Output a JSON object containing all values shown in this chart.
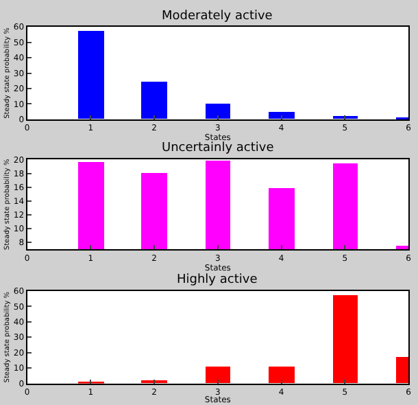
{
  "chart_data": [
    {
      "type": "bar",
      "title": "Moderately active",
      "xlabel": "States",
      "ylabel": "Steady state probability %",
      "x": [
        1,
        2,
        3,
        4,
        5,
        6
      ],
      "values": [
        57.5,
        24.5,
        10.5,
        4.5,
        2,
        0.7
      ],
      "color": "#0000ff",
      "xlim": [
        0,
        6
      ],
      "xticks": [
        0,
        1,
        2,
        3,
        4,
        5,
        6
      ],
      "ylim": [
        0,
        60
      ],
      "yticks": [
        0,
        10,
        20,
        30,
        40,
        50,
        60
      ],
      "grid": false
    },
    {
      "type": "bar",
      "title": "Uncertainly active",
      "xlabel": "States",
      "ylabel": "Steady state probability %",
      "x": [
        1,
        2,
        3,
        4,
        5,
        6
      ],
      "values": [
        19.6,
        18,
        19.9,
        15.9,
        19.5,
        7.5
      ],
      "color": "#ff00ff",
      "xlim": [
        0,
        6
      ],
      "xticks": [
        0,
        1,
        2,
        3,
        4,
        5,
        6
      ],
      "ylim": [
        7,
        20
      ],
      "yticks": [
        8,
        10,
        12,
        14,
        16,
        18,
        20
      ],
      "grid": false
    },
    {
      "type": "bar",
      "title": "Highly active",
      "xlabel": "States",
      "ylabel": "Steady state probability %",
      "x": [
        1,
        2,
        3,
        4,
        5,
        6
      ],
      "values": [
        1.5,
        2.5,
        11,
        11,
        57.5,
        17
      ],
      "color": "#ff0000",
      "xlim": [
        0,
        6
      ],
      "xticks": [
        0,
        1,
        2,
        3,
        4,
        5,
        6
      ],
      "ylim": [
        0,
        60
      ],
      "yticks": [
        0,
        10,
        20,
        30,
        40,
        50,
        60
      ],
      "grid": false
    }
  ]
}
